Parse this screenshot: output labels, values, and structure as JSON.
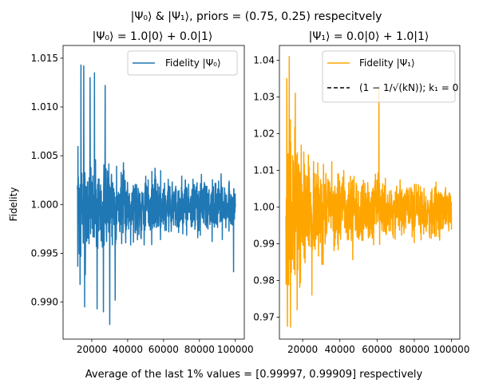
{
  "figure": {
    "suptitle": "|Ψ₀⟩ & |Ψ₁⟩, priors = (0.75, 0.25) respecitvely",
    "footer": "Average of the last 1% values = [0.99997, 0.99909] respectively"
  },
  "chart_data": [
    {
      "type": "line",
      "title": "|Ψ₀⟩ =  1.0|0⟩ + 0.0|1⟩",
      "xlabel": "",
      "ylabel": "Fidelity",
      "xlim": [
        4000,
        105000
      ],
      "ylim": [
        0.9862,
        1.0163
      ],
      "xticks": [
        20000,
        40000,
        60000,
        80000,
        100000
      ],
      "xtick_labels": [
        "20000",
        "40000",
        "60000",
        "80000",
        "100000"
      ],
      "yticks": [
        0.99,
        0.995,
        1.0,
        1.005,
        1.01,
        1.015
      ],
      "ytick_labels": [
        "0.990",
        "0.995",
        "1.000",
        "1.005",
        "1.010",
        "1.015"
      ],
      "legend_position": "upper-right",
      "series": [
        {
          "name": "Fidelity |Ψ₀⟩",
          "color": "#1f77b4",
          "x_range": [
            12000,
            100000
          ],
          "points": 900,
          "seed": 7,
          "envelope": [
            [
              12000,
              0.0088
            ],
            [
              20000,
              0.0072
            ],
            [
              30000,
              0.0058
            ],
            [
              40000,
              0.005
            ],
            [
              60000,
              0.0044
            ],
            [
              80000,
              0.004
            ],
            [
              100000,
              0.0036
            ]
          ],
          "max": 1.0143,
          "min": 0.9877,
          "mean": 0.9999,
          "spikes": [
            [
              14000,
              1.0143
            ],
            [
              15500,
              1.0142
            ],
            [
              21500,
              1.0135
            ],
            [
              27500,
              1.0122
            ],
            [
              19000,
              1.013
            ],
            [
              13500,
              0.9918
            ],
            [
              16000,
              0.9895
            ],
            [
              23000,
              0.9893
            ],
            [
              26500,
              0.989
            ],
            [
              30000,
              0.9877
            ],
            [
              33000,
              0.9902
            ],
            [
              99000,
              0.9931
            ]
          ]
        }
      ]
    },
    {
      "type": "line",
      "title": "|Ψ₁⟩ =  0.0|0⟩ + 1.0|1⟩",
      "xlabel": "",
      "ylabel": "",
      "xlim": [
        7500,
        104500
      ],
      "ylim": [
        0.964,
        1.044
      ],
      "xticks": [
        20000,
        40000,
        60000,
        80000,
        100000
      ],
      "xtick_labels": [
        "20000",
        "40000",
        "60000",
        "80000",
        "100000"
      ],
      "yticks": [
        0.97,
        0.98,
        0.99,
        1.0,
        1.01,
        1.02,
        1.03,
        1.04
      ],
      "ytick_labels": [
        "0.97",
        "0.98",
        "0.99",
        "1.00",
        "1.01",
        "1.02",
        "1.03",
        "1.04"
      ],
      "legend_position": "upper-right",
      "series": [
        {
          "name": "Fidelity |Ψ₁⟩",
          "color": "#ffa500",
          "x_range": [
            11000,
            100000
          ],
          "points": 900,
          "seed": 13,
          "envelope": [
            [
              11000,
              0.03
            ],
            [
              20000,
              0.022
            ],
            [
              30000,
              0.017
            ],
            [
              40000,
              0.014
            ],
            [
              60000,
              0.012
            ],
            [
              80000,
              0.01
            ],
            [
              100000,
              0.009
            ]
          ],
          "max": 1.041,
          "min": 0.9673,
          "mean": 0.9991,
          "spikes": [
            [
              11500,
              1.035
            ],
            [
              12800,
              1.041
            ],
            [
              16000,
              1.031
            ],
            [
              61000,
              1.033
            ],
            [
              11800,
              0.9675
            ],
            [
              13500,
              0.9673
            ],
            [
              17000,
              0.972
            ],
            [
              25000,
              0.976
            ]
          ]
        },
        {
          "name": "(1 − 1/√(kN)); k₁ =  0",
          "color": "#000000",
          "dashed": true,
          "values": []
        }
      ]
    }
  ]
}
